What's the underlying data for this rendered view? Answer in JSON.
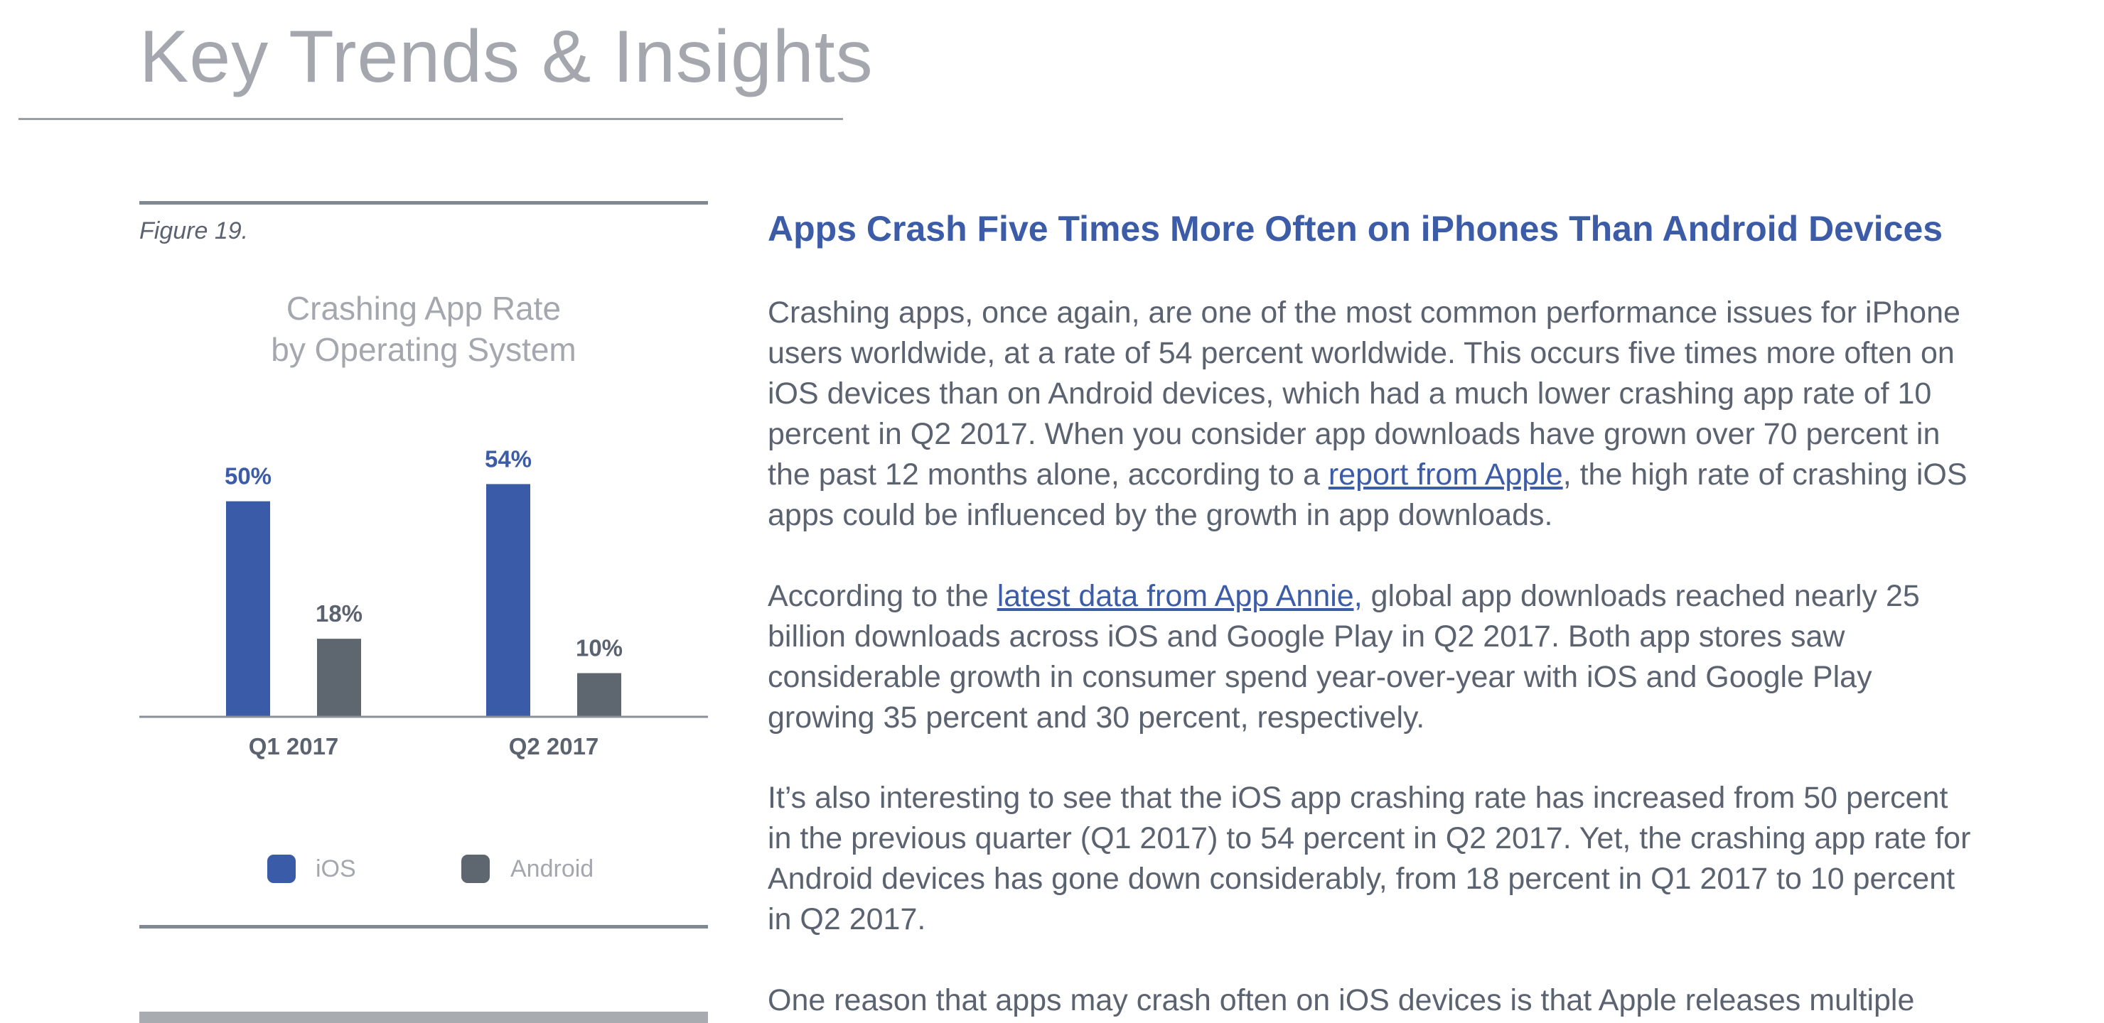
{
  "header": {
    "title": "Key Trends & Insights"
  },
  "figure": {
    "label": "Figure 19.",
    "legend": [
      {
        "name": "iOS",
        "color": "#3a5ba8"
      },
      {
        "name": "Android",
        "color": "#5e666f"
      }
    ]
  },
  "chart_data": {
    "type": "bar",
    "title": "Crashing App Rate\nby Operating System",
    "categories": [
      "Q1 2017",
      "Q2 2017"
    ],
    "series": [
      {
        "name": "iOS",
        "values": [
          50,
          54
        ],
        "color": "#3a5ba8",
        "labels": [
          "50%",
          "54%"
        ]
      },
      {
        "name": "Android",
        "values": [
          18,
          10
        ],
        "color": "#5e666f",
        "labels": [
          "18%",
          "10%"
        ]
      }
    ],
    "ylim": [
      0,
      60
    ],
    "grid": false,
    "legend_position": "bottom"
  },
  "article": {
    "heading": "Apps Crash Five Times More Often on iPhones Than Android Devices",
    "p1_before": "Crashing apps, once again, are one of the most common performance issues for iPhone users worldwide, at a rate of 54 percent worldwide. This occurs five times more often on iOS devices than on Android devices, which had a much lower crashing app rate of 10 percent in Q2 2017. When you consider app downloads have grown over 70 percent in the past 12 months alone, according to a ",
    "p1_link": "report from Apple",
    "p1_after": ", the high rate of crashing iOS apps could be influenced by the growth in app downloads.",
    "p2_before": "According to the ",
    "p2_link": "latest data from App Annie,",
    "p2_after": " global app downloads reached nearly 25 billion downloads across iOS and Google Play in Q2 2017. Both app stores saw considerable growth in consumer spend year-over-year with iOS and Google Play growing 35 percent and 30 percent, respectively.",
    "p3": "It’s also interesting to see that the iOS app crashing rate has increased from 50 percent in the previous quarter (Q1 2017) to 54 percent in Q2 2017. Yet, the crashing app rate for Android devices has gone down considerably, from 18 percent in Q1 2017 to 10 percent in Q2 2017.",
    "p4": "One reason that apps may crash often on iOS devices is that Apple releases multiple"
  }
}
